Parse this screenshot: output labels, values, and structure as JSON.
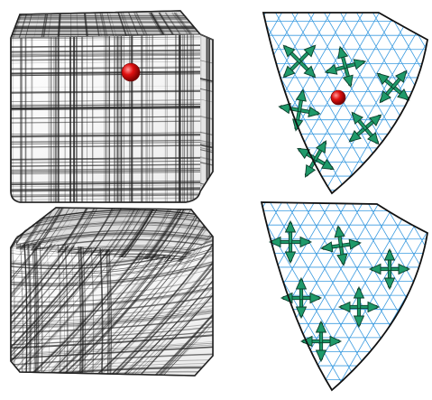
{
  "figure": {
    "background": "#ffffff",
    "panels": [
      {
        "id": "cube-aligned",
        "kind": "hatched-cube",
        "hatch_style": "axis-aligned",
        "marker": true
      },
      {
        "id": "patch-nonsmooth",
        "kind": "triangle-patch",
        "field": "non-smooth",
        "singularity": true
      },
      {
        "id": "cube-smooth",
        "kind": "hatched-cube",
        "hatch_style": "curved",
        "marker": false
      },
      {
        "id": "patch-smooth",
        "kind": "triangle-patch",
        "field": "smooth",
        "singularity": false
      }
    ]
  },
  "colors": {
    "mesh_line": "#3a9be0",
    "patch_fill": "#ffffff",
    "patch_border": "#111111",
    "cross_arrow": "#1f9a6a",
    "cross_arrow_outline": "#0a3d2a",
    "singularity": "#e01010",
    "hatch": "#222222",
    "cube_fill": "#f4f4f4"
  },
  "icons": {
    "singularity": "red-sphere-icon",
    "cross": "four-way-arrow-icon"
  }
}
